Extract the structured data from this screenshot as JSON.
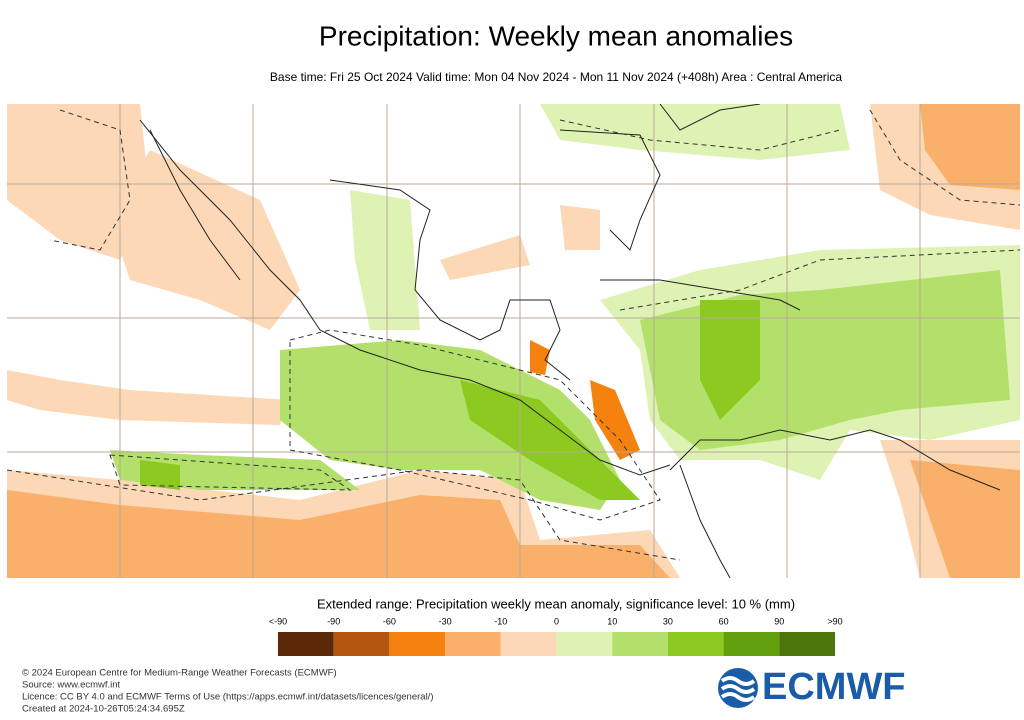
{
  "header": {
    "title": "Precipitation: Weekly mean anomalies",
    "subtitle": "Base time: Fri 25 Oct 2024 Valid time: Mon 04 Nov 2024 - Mon 11 Nov 2024 (+408h) Area : Central America"
  },
  "legend": {
    "title": "Extended range: Precipitation weekly mean anomaly, significance level: 10 % (mm)",
    "labels": [
      "<-90",
      "-90",
      "-60",
      "-30",
      "-10",
      "0",
      "10",
      "30",
      "60",
      "90",
      ">90"
    ],
    "colors": [
      "#5a2a08",
      "#b3560f",
      "#f5820f",
      "#f9b06a",
      "#fdd8b6",
      "#def3b3",
      "#b3e06b",
      "#8cca22",
      "#62a00e",
      "#4d760a"
    ]
  },
  "footer": {
    "lines": [
      "© 2024 European Centre for Medium-Range Weather Forecasts (ECMWF)",
      "Source: www.ecmwf.int",
      "Licence: CC BY 4.0 and ECMWF Terms of Use (https://apps.ecmwf.int/datasets/licences/general/)",
      "Created at 2024-10-26T05:24:34.695Z"
    ],
    "logo": "ECMWF"
  }
}
